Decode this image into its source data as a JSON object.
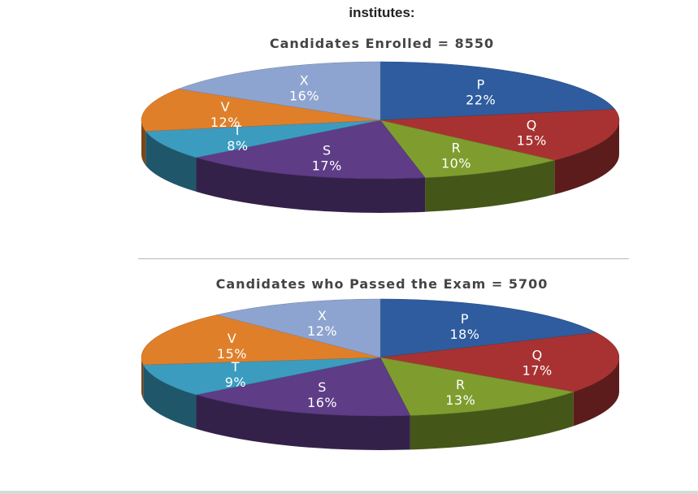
{
  "heading": "institutes:",
  "chart_data": [
    {
      "type": "pie",
      "title": "Candidates Enrolled = 8550",
      "categories": [
        "P",
        "Q",
        "R",
        "S",
        "T",
        "V",
        "X"
      ],
      "values": [
        22,
        15,
        10,
        17,
        8,
        12,
        16
      ],
      "value_labels": [
        "22%",
        "15%",
        "10%",
        "17%",
        "8%",
        "12%",
        "16%"
      ],
      "colors": [
        "#2e5c9e",
        "#a83232",
        "#7e9d2e",
        "#5e3c86",
        "#3b9cc0",
        "#e07f2a",
        "#8ea4d0"
      ],
      "style": "3d"
    },
    {
      "type": "pie",
      "title": "Candidates who Passed the Exam = 5700",
      "categories": [
        "P",
        "Q",
        "R",
        "S",
        "T",
        "V",
        "X"
      ],
      "values": [
        18,
        17,
        13,
        16,
        9,
        15,
        12
      ],
      "value_labels": [
        "18%",
        "17%",
        "13%",
        "16%",
        "9%",
        "15%",
        "12%"
      ],
      "colors": [
        "#2e5c9e",
        "#a83232",
        "#7e9d2e",
        "#5e3c86",
        "#3b9cc0",
        "#e07f2a",
        "#8ea4d0"
      ],
      "style": "3d"
    }
  ]
}
